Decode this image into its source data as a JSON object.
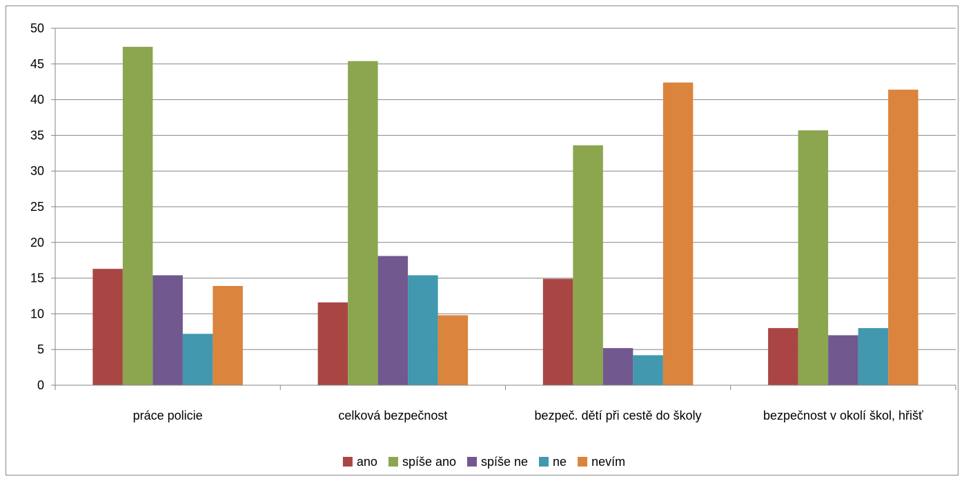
{
  "chart_data": {
    "type": "bar",
    "title": "",
    "xlabel": "",
    "ylabel": "",
    "ylim": [
      0,
      50
    ],
    "yticks": [
      0,
      5,
      10,
      15,
      20,
      25,
      30,
      35,
      40,
      45,
      50
    ],
    "grid": "horizontal",
    "legend_position": "bottom",
    "categories": [
      "práce policie",
      "celková bezpečnost",
      "bezpeč. dětí při cestě do školy",
      "bezpečnost v okolí  škol, hřišť"
    ],
    "series": [
      {
        "name": "ano",
        "color": "#A94643",
        "values": [
          16.3,
          11.6,
          14.9,
          8.0
        ]
      },
      {
        "name": "spíše ano",
        "color": "#8BA64F",
        "values": [
          47.4,
          45.4,
          33.6,
          35.7
        ]
      },
      {
        "name": "spíše ne",
        "color": "#71588F",
        "values": [
          15.4,
          18.1,
          5.2,
          7.0
        ]
      },
      {
        "name": "ne",
        "color": "#4198AF",
        "values": [
          7.2,
          15.4,
          4.2,
          8.0
        ]
      },
      {
        "name": "nevím",
        "color": "#DB843D",
        "values": [
          13.9,
          9.8,
          42.4,
          41.4
        ]
      }
    ]
  }
}
